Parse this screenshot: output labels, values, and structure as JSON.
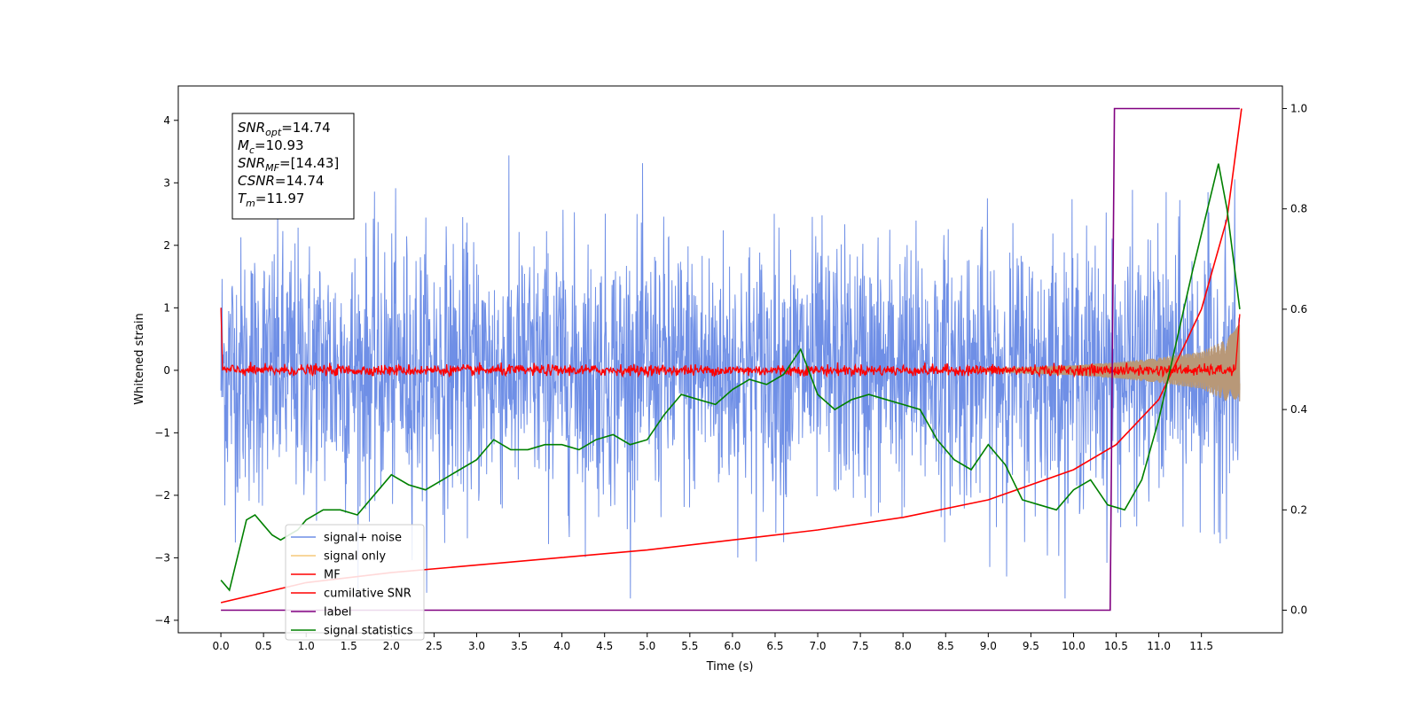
{
  "chart_data": {
    "type": "line",
    "xlabel": "Time (s)",
    "ylabel_left": "Whitened strain",
    "xlim": [
      -0.5,
      12.45
    ],
    "ylim_left": [
      -4.2,
      4.55
    ],
    "ylim_right": [
      -0.045,
      1.045
    ],
    "x_ticks": [
      "0.0",
      "0.5",
      "1.0",
      "1.5",
      "2.0",
      "2.5",
      "3.0",
      "3.5",
      "4.0",
      "4.5",
      "5.0",
      "5.5",
      "6.0",
      "6.5",
      "7.0",
      "7.5",
      "8.0",
      "8.5",
      "9.0",
      "9.5",
      "10.0",
      "10.5",
      "11.0",
      "11.5"
    ],
    "y_ticks_left": [
      "4",
      "3",
      "2",
      "1",
      "0",
      "−1",
      "−2",
      "−3",
      "−4"
    ],
    "y_ticks_right": [
      "1.0",
      "0.8",
      "0.6",
      "0.4",
      "0.2",
      "0.0"
    ],
    "legend_placement": "lower-left",
    "annotation": {
      "lines": [
        {
          "sym": "SNR",
          "sub": "opt",
          "val": "=14.74"
        },
        {
          "sym": "M",
          "sub": "c",
          "val": "=10.93"
        },
        {
          "sym": "SNR",
          "sub": "MF",
          "val": "=[14.43]"
        },
        {
          "sym": "CSNR",
          "sub": "",
          "val": "=14.74"
        },
        {
          "sym": "T",
          "sub": "m",
          "val": "=11.97"
        }
      ]
    },
    "series": [
      {
        "name": "signal+ noise",
        "axis": "left",
        "color": "#6f8fe6",
        "description_values": {
          "std_approx": 1.0,
          "range": [
            -3.65,
            3.65
          ]
        }
      },
      {
        "name": "signal only",
        "axis": "left",
        "color": "#f5c97a",
        "envelope_x": [
          9.0,
          10.0,
          10.5,
          11.0,
          11.5,
          11.8,
          11.95
        ],
        "envelope_y": [
          0.02,
          0.08,
          0.13,
          0.2,
          0.3,
          0.5,
          0.75
        ]
      },
      {
        "name": "MF",
        "axis": "left",
        "color": "#ff0000",
        "noise_std": 0.05
      },
      {
        "name": "cumilative SNR",
        "axis": "right",
        "color": "#ff0000",
        "x": [
          0.0,
          1.0,
          2.0,
          3.0,
          4.0,
          5.0,
          6.0,
          7.0,
          8.0,
          9.0,
          10.0,
          10.5,
          11.0,
          11.5,
          11.8,
          11.97
        ],
        "y": [
          0.015,
          0.055,
          0.075,
          0.09,
          0.105,
          0.12,
          0.14,
          0.16,
          0.185,
          0.22,
          0.28,
          0.33,
          0.42,
          0.6,
          0.78,
          1.0
        ]
      },
      {
        "name": "label",
        "axis": "right",
        "color": "#800080",
        "x": [
          0.0,
          10.43,
          10.48,
          11.95
        ],
        "y": [
          0.0,
          0.0,
          1.0,
          1.0
        ]
      },
      {
        "name": "signal statistics",
        "axis": "right",
        "color": "#008000",
        "x": [
          0.0,
          0.1,
          0.2,
          0.3,
          0.4,
          0.5,
          0.6,
          0.7,
          0.8,
          0.9,
          1.0,
          1.2,
          1.4,
          1.6,
          1.8,
          2.0,
          2.2,
          2.4,
          2.6,
          2.8,
          3.0,
          3.2,
          3.4,
          3.6,
          3.8,
          4.0,
          4.2,
          4.4,
          4.6,
          4.8,
          5.0,
          5.2,
          5.4,
          5.6,
          5.8,
          6.0,
          6.2,
          6.4,
          6.6,
          6.8,
          7.0,
          7.2,
          7.4,
          7.6,
          7.8,
          8.0,
          8.2,
          8.4,
          8.6,
          8.8,
          9.0,
          9.2,
          9.4,
          9.6,
          9.8,
          10.0,
          10.2,
          10.4,
          10.6,
          10.8,
          11.0,
          11.2,
          11.4,
          11.6,
          11.7,
          11.8,
          11.95
        ],
        "y": [
          0.06,
          0.04,
          0.11,
          0.18,
          0.19,
          0.17,
          0.15,
          0.14,
          0.15,
          0.16,
          0.18,
          0.2,
          0.2,
          0.19,
          0.23,
          0.27,
          0.25,
          0.24,
          0.26,
          0.28,
          0.3,
          0.34,
          0.32,
          0.32,
          0.33,
          0.33,
          0.32,
          0.34,
          0.35,
          0.33,
          0.34,
          0.39,
          0.43,
          0.42,
          0.41,
          0.44,
          0.46,
          0.45,
          0.47,
          0.52,
          0.43,
          0.4,
          0.42,
          0.43,
          0.42,
          0.41,
          0.4,
          0.34,
          0.3,
          0.28,
          0.33,
          0.29,
          0.22,
          0.21,
          0.2,
          0.24,
          0.26,
          0.21,
          0.2,
          0.26,
          0.38,
          0.53,
          0.68,
          0.82,
          0.89,
          0.8,
          0.6
        ]
      }
    ]
  }
}
